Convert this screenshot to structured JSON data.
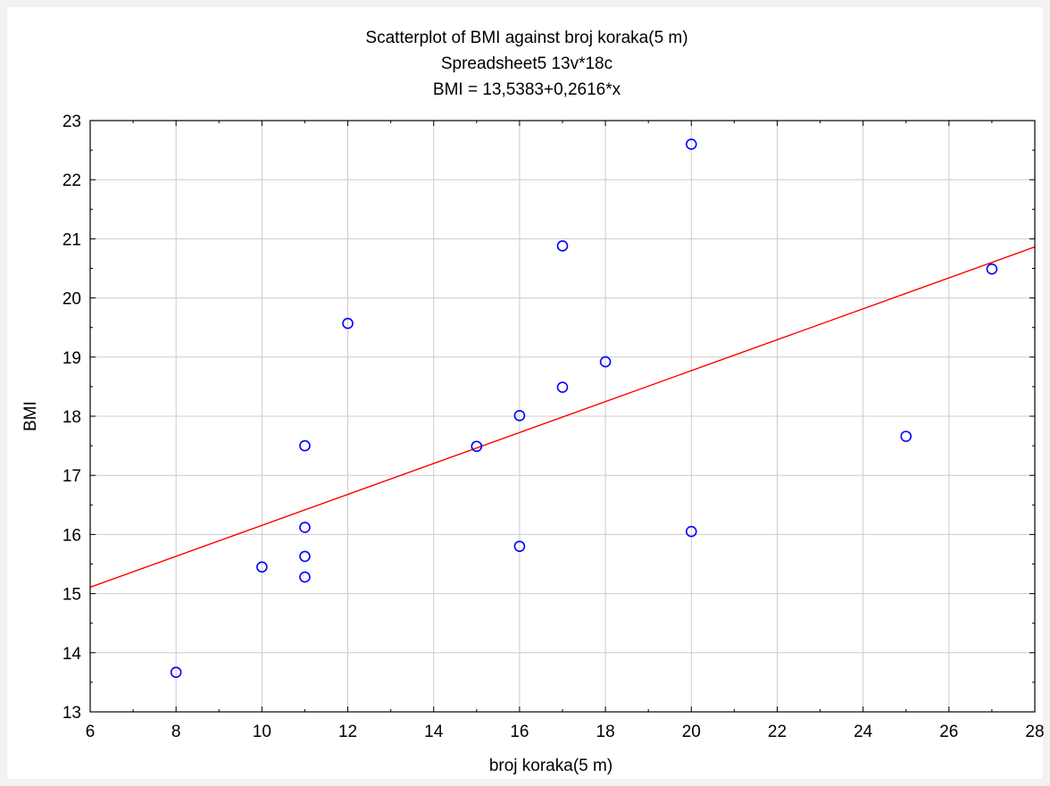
{
  "chart_data": {
    "type": "scatter",
    "title": "Scatterplot of BMI against broj koraka(5 m)",
    "subtitle": "Spreadsheet5 13v*18c",
    "equation": "BMI = 13,5383+0,2616*x",
    "xlabel": "broj koraka(5 m)",
    "ylabel": "BMI",
    "xlim": [
      6,
      28
    ],
    "ylim": [
      13,
      23
    ],
    "x_ticks": [
      6,
      8,
      10,
      12,
      14,
      16,
      18,
      20,
      22,
      24,
      26,
      28
    ],
    "y_ticks": [
      13,
      14,
      15,
      16,
      17,
      18,
      19,
      20,
      21,
      22,
      23
    ],
    "grid": true,
    "points": [
      {
        "x": 8,
        "y": 13.67
      },
      {
        "x": 10,
        "y": 15.45
      },
      {
        "x": 11,
        "y": 17.5
      },
      {
        "x": 11,
        "y": 16.12
      },
      {
        "x": 11,
        "y": 15.63
      },
      {
        "x": 11,
        "y": 15.28
      },
      {
        "x": 12,
        "y": 19.57
      },
      {
        "x": 15,
        "y": 17.49
      },
      {
        "x": 16,
        "y": 18.01
      },
      {
        "x": 16,
        "y": 15.8
      },
      {
        "x": 17,
        "y": 20.88
      },
      {
        "x": 17,
        "y": 18.49
      },
      {
        "x": 18,
        "y": 18.92
      },
      {
        "x": 20,
        "y": 22.6
      },
      {
        "x": 20,
        "y": 16.05
      },
      {
        "x": 25,
        "y": 17.66
      },
      {
        "x": 27,
        "y": 20.49
      }
    ],
    "regression": {
      "intercept": 13.5383,
      "slope": 0.2616
    },
    "colors": {
      "points": "#0000ff",
      "fit_line": "#ff0000",
      "grid": "#cccccc",
      "frame": "#000000",
      "background": "#ffffff"
    }
  }
}
